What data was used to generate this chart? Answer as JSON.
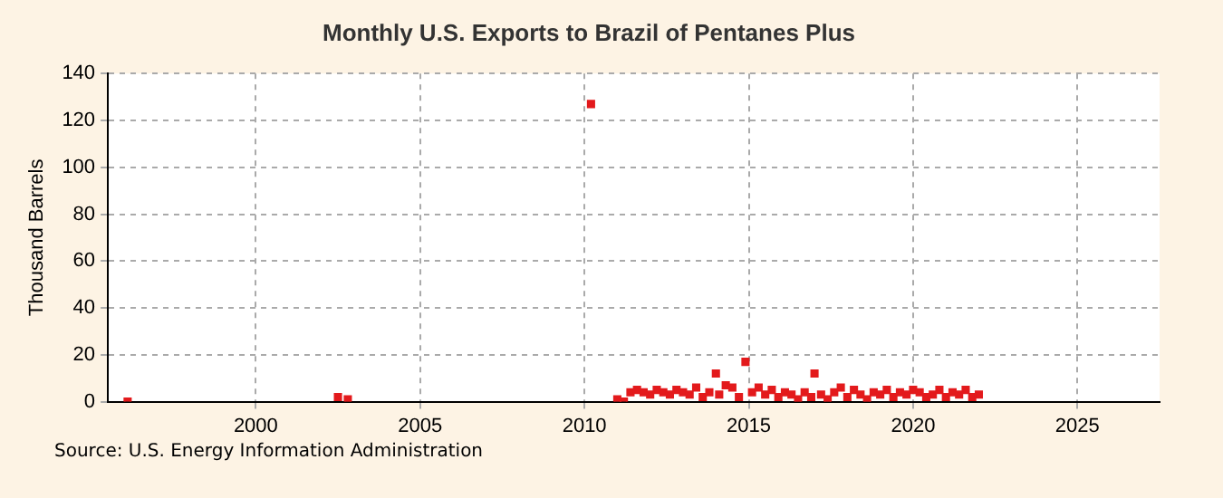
{
  "chart_data": {
    "type": "scatter",
    "title": "Monthly U.S. Exports to Brazil of Pentanes Plus",
    "ylabel": "Thousand Barrels",
    "annotations": [
      "Source: U.S. Energy Information Administration"
    ],
    "x": [
      1996.1,
      2002.5,
      2002.8,
      2010.2,
      2011.0,
      2011.2,
      2011.4,
      2011.6,
      2011.8,
      2012.0,
      2012.2,
      2012.4,
      2012.6,
      2012.8,
      2013.0,
      2013.2,
      2013.4,
      2013.6,
      2013.8,
      2014.0,
      2014.1,
      2014.3,
      2014.5,
      2014.7,
      2014.9,
      2015.1,
      2015.3,
      2015.5,
      2015.7,
      2015.9,
      2016.1,
      2016.3,
      2016.5,
      2016.7,
      2016.9,
      2017.0,
      2017.2,
      2017.4,
      2017.6,
      2017.8,
      2018.0,
      2018.2,
      2018.4,
      2018.6,
      2018.8,
      2019.0,
      2019.2,
      2019.4,
      2019.6,
      2019.8,
      2020.0,
      2020.2,
      2020.4,
      2020.6,
      2020.8,
      2021.0,
      2021.2,
      2021.4,
      2021.6,
      2021.8,
      2022.0
    ],
    "values": [
      0,
      2,
      1,
      127,
      1,
      0,
      4,
      5,
      4,
      3,
      5,
      4,
      3,
      5,
      4,
      3,
      6,
      2,
      4,
      12,
      3,
      7,
      6,
      2,
      17,
      4,
      6,
      3,
      5,
      2,
      4,
      3,
      1,
      4,
      2,
      12,
      3,
      1,
      4,
      6,
      2,
      5,
      3,
      1,
      4,
      3,
      5,
      2,
      4,
      3,
      5,
      4,
      2,
      3,
      5,
      2,
      4,
      3,
      5,
      2,
      3
    ],
    "color": "#e31a1c",
    "marker": "square",
    "xlim": [
      1995.5,
      2027.5
    ],
    "xticks": [
      2000,
      2005,
      2010,
      2015,
      2020,
      2025
    ],
    "ylim": [
      0,
      140
    ],
    "yticks": [
      0,
      20,
      40,
      60,
      80,
      100,
      120,
      140
    ],
    "grid": true,
    "legend": false
  }
}
